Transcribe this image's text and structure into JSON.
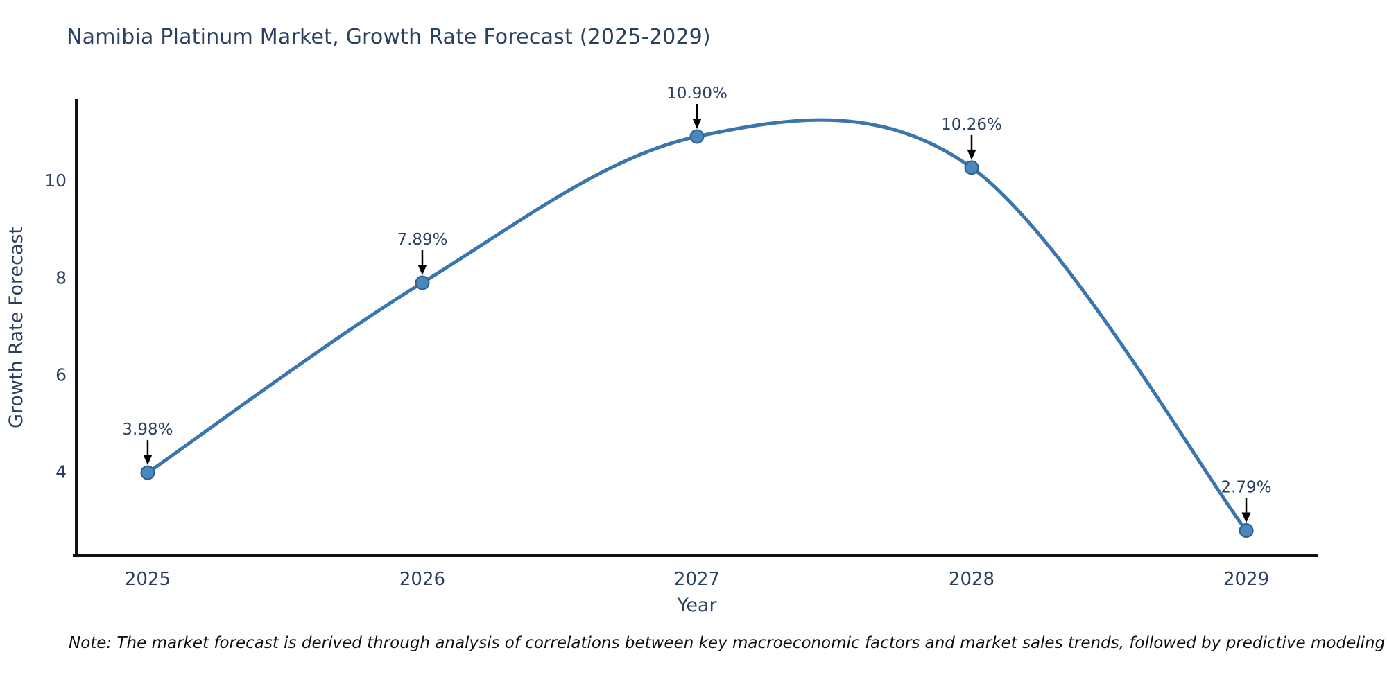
{
  "header": {
    "title": "Namibia Platinum Market, Growth Rate Forecast (2025-2029)"
  },
  "chart_data": {
    "type": "line",
    "line_shape": "spline",
    "title": "Namibia Platinum Market, Growth Rate Forecast (2025-2029)",
    "xlabel": "Year",
    "ylabel": "Growth Rate Forecast",
    "x": [
      2025,
      2026,
      2027,
      2028,
      2029
    ],
    "series": [
      {
        "name": "Growth Rate Forecast",
        "values": [
          3.98,
          7.89,
          10.9,
          10.26,
          2.79
        ],
        "point_labels": [
          "3.98%",
          "7.89%",
          "10.90%",
          "10.26%",
          "2.79%"
        ]
      }
    ],
    "xticks": [
      "2025",
      "2026",
      "2027",
      "2028",
      "2029"
    ],
    "yticks": [
      4,
      6,
      8,
      10
    ],
    "xlim": [
      2024.74,
      2029.26
    ],
    "ylim": [
      2.27,
      11.67
    ],
    "grid": false,
    "legend": "none",
    "annotations": "value labels above each point with downward black arrows",
    "colors": {
      "line": "#3a76ab",
      "marker_fill": "#4a87bb",
      "marker_edge": "#2b5f8e",
      "axis_line": "#101117",
      "text": "#2a3f5f",
      "annotation_arrow": "#000000"
    }
  },
  "footnote": {
    "text": "Note: The market forecast is derived through analysis of correlations between key macroeconomic factors and market sales trends, followed by predictive modeling to project future sales"
  }
}
